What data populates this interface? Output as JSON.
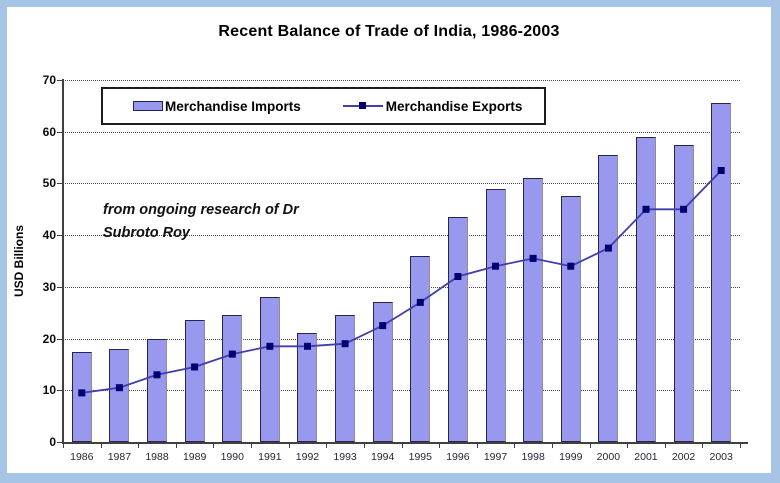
{
  "title": "Recent Balance of Trade of India, 1986-2003",
  "annotation": {
    "line1": "from ongoing research of Dr",
    "line2": "Subroto Roy"
  },
  "legend": {
    "imports_label": "Merchandise Imports",
    "exports_label": "Merchandise Exports"
  },
  "colors": {
    "frame_border": "#a6c4e6",
    "bar_fill": "#9898ee",
    "bar_border": "#26264d",
    "line": "#3e3eae",
    "marker": "#000070",
    "axis": "#404040"
  },
  "chart_data": {
    "type": "bar",
    "title": "Recent Balance of Trade of India, 1986-2003",
    "xlabel": "",
    "ylabel": "USD Billions",
    "ylim": [
      0,
      70
    ],
    "ytick_step": 10,
    "grid": "horizontal-dotted",
    "legend_position": "top-inside",
    "categories": [
      "1986",
      "1987",
      "1988",
      "1989",
      "1990",
      "1991",
      "1992",
      "1993",
      "1994",
      "1995",
      "1996",
      "1997",
      "1998",
      "1999",
      "2000",
      "2001",
      "2002",
      "2003"
    ],
    "series": [
      {
        "name": "Merchandise Imports",
        "type": "bar",
        "values": [
          17.5,
          18,
          20,
          23.5,
          24.5,
          28,
          21,
          24.5,
          27,
          36,
          43.5,
          49,
          51,
          47.5,
          55.5,
          59,
          57.5,
          65.5
        ]
      },
      {
        "name": "Merchandise Exports",
        "type": "line-square-markers",
        "values": [
          9.5,
          10.5,
          13,
          14.5,
          17,
          18.5,
          18.5,
          19,
          22.5,
          27,
          32,
          34,
          35.5,
          34,
          37.5,
          45,
          45,
          52.5
        ]
      }
    ]
  }
}
